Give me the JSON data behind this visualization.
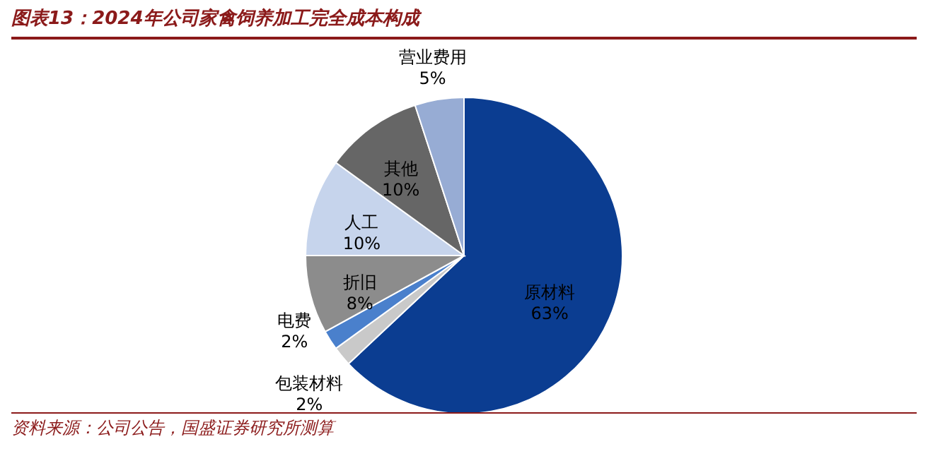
{
  "chart_data": {
    "type": "pie",
    "title": "图表13：2024年公司家禽饲养加工完全成本构成",
    "categories": [
      "原材料",
      "包装材料",
      "电费",
      "折旧",
      "人工",
      "其他",
      "营业费用"
    ],
    "values": [
      63,
      2,
      2,
      8,
      10,
      10,
      5
    ],
    "value_labels": [
      "63%",
      "2%",
      "2%",
      "8%",
      "10%",
      "10%",
      "5%"
    ],
    "colors": [
      "#0b3d91",
      "#c9c9c9",
      "#4a80cc",
      "#8c8c8c",
      "#c6d4ec",
      "#666666",
      "#97acd4"
    ],
    "annotations": [
      "资料来源：公司公告，国盛证券研究所测算"
    ]
  }
}
